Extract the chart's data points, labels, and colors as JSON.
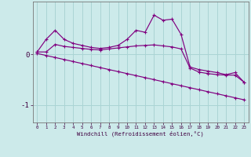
{
  "xlabel": "Windchill (Refroidissement éolien,°C)",
  "bg_color": "#cceaea",
  "line_color": "#800080",
  "grid_color": "#aad4d4",
  "hours": [
    0,
    1,
    2,
    3,
    4,
    5,
    6,
    7,
    8,
    9,
    10,
    11,
    12,
    13,
    14,
    15,
    16,
    17,
    18,
    19,
    20,
    21,
    22,
    23
  ],
  "temp_curve": [
    0.05,
    0.3,
    0.48,
    0.3,
    0.22,
    0.18,
    0.14,
    0.12,
    0.14,
    0.18,
    0.3,
    0.48,
    0.44,
    0.78,
    0.68,
    0.7,
    0.4,
    -0.25,
    -0.3,
    -0.33,
    -0.36,
    -0.4,
    -0.36,
    -0.55
  ],
  "windchill_curve": [
    0.05,
    0.05,
    0.2,
    0.16,
    0.14,
    0.12,
    0.1,
    0.09,
    0.11,
    0.13,
    0.15,
    0.17,
    0.18,
    0.19,
    0.17,
    0.15,
    0.11,
    -0.27,
    -0.35,
    -0.38,
    -0.4,
    -0.41,
    -0.41,
    -0.55
  ],
  "linear_fit": [
    0.02,
    -0.02,
    -0.06,
    -0.1,
    -0.14,
    -0.18,
    -0.22,
    -0.26,
    -0.3,
    -0.34,
    -0.38,
    -0.42,
    -0.46,
    -0.5,
    -0.54,
    -0.58,
    -0.62,
    -0.66,
    -0.7,
    -0.74,
    -0.78,
    -0.82,
    -0.86,
    -0.9
  ],
  "ylim": [
    -1.35,
    1.05
  ],
  "ytick_vals": [
    -1,
    0
  ],
  "ytick_labels": [
    "-1",
    "0"
  ],
  "xlim": [
    -0.5,
    23.5
  ]
}
